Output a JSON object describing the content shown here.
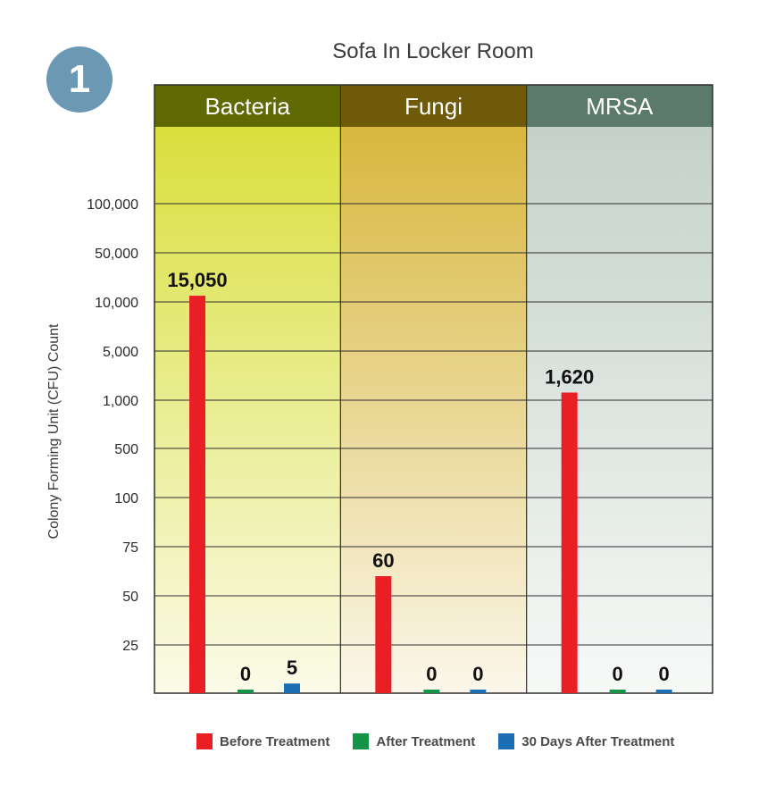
{
  "badge": "1",
  "chart_data": {
    "type": "bar",
    "title": "Sofa In Locker Room",
    "ylabel": "Colony Forming Unit (CFU) Count",
    "xlabel": "",
    "y_scale": "categorical (non-linear tick spacing)",
    "y_ticks": [
      "25",
      "50",
      "75",
      "100",
      "500",
      "1,000",
      "5,000",
      "10,000",
      "50,000",
      "100,000"
    ],
    "grid": true,
    "legend_position": "bottom",
    "categories": [
      "Bacteria",
      "Fungi",
      "MRSA"
    ],
    "category_colors": {
      "Bacteria": {
        "header": "#5f6a05",
        "top": "#d9df3c",
        "bottom": "#fbfbe9"
      },
      "Fungi": {
        "header": "#6e5a0a",
        "top": "#d8b73e",
        "bottom": "#fbf7ea"
      },
      "MRSA": {
        "header": "#5c7a6c",
        "top": "#c4d2ca",
        "bottom": "#f7f9f7"
      }
    },
    "series": [
      {
        "name": "Before Treatment",
        "color": "#ea1f25",
        "values": [
          15050,
          60,
          1620
        ],
        "labels": [
          "15,050",
          "60",
          "1,620"
        ]
      },
      {
        "name": "After Treatment",
        "color": "#139447",
        "values": [
          0,
          0,
          0
        ],
        "labels": [
          "0",
          "0",
          "0"
        ]
      },
      {
        "name": "30 Days After Treatment",
        "color": "#1a6fb4",
        "values": [
          5,
          0,
          0
        ],
        "labels": [
          "5",
          "0",
          "0"
        ]
      }
    ]
  }
}
